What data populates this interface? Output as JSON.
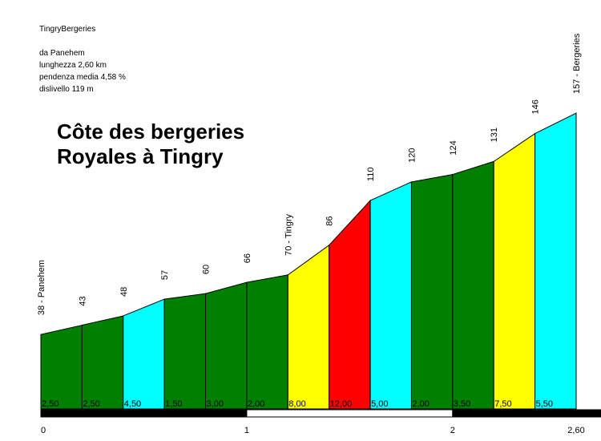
{
  "header": {
    "name": "TingryBergeries",
    "from": "da Panehem",
    "length": "lunghezza 2,60 km",
    "avg_grade": "pendenza media 4,58 %",
    "elevation_gain": "dislivello 119 m"
  },
  "title": {
    "line1": "Côte des bergeries",
    "line2": "Royales à Tingry"
  },
  "chart_data": {
    "type": "area",
    "x": [
      0,
      0.2,
      0.4,
      0.6,
      0.8,
      1.0,
      1.2,
      1.4,
      1.6,
      1.8,
      2.0,
      2.2,
      2.4,
      2.6
    ],
    "y": [
      38,
      43,
      48,
      57,
      60,
      66,
      70,
      86,
      110,
      120,
      124,
      131,
      146,
      157
    ],
    "point_labels": [
      "38 - Panehem",
      "43",
      "48",
      "57",
      "60",
      "66",
      "70 - Tingry",
      "86",
      "110",
      "120",
      "124",
      "131",
      "146",
      "157 - Bergeries"
    ],
    "segment_grades": [
      "2,50",
      "2,50",
      "4,50",
      "1,50",
      "3,00",
      "2,00",
      "8,00",
      "12,00",
      "5,00",
      "2,00",
      "3,50",
      "7,50",
      "5,50"
    ],
    "segment_colors": [
      "#008000",
      "#008000",
      "#00ffff",
      "#008000",
      "#008000",
      "#008000",
      "#ffff00",
      "#ff0000",
      "#00ffff",
      "#008000",
      "#008000",
      "#ffff00",
      "#00ffff"
    ],
    "x_ticks": [
      0,
      1,
      2,
      2.6
    ],
    "x_tick_labels": [
      "0",
      "1",
      "2",
      "2,60"
    ],
    "xlim": [
      0,
      2.6
    ],
    "ylim": [
      -2,
      157
    ],
    "colors": {
      "scale_dark": "#000000",
      "scale_light": "#ffffff",
      "outline": "#000000"
    }
  }
}
